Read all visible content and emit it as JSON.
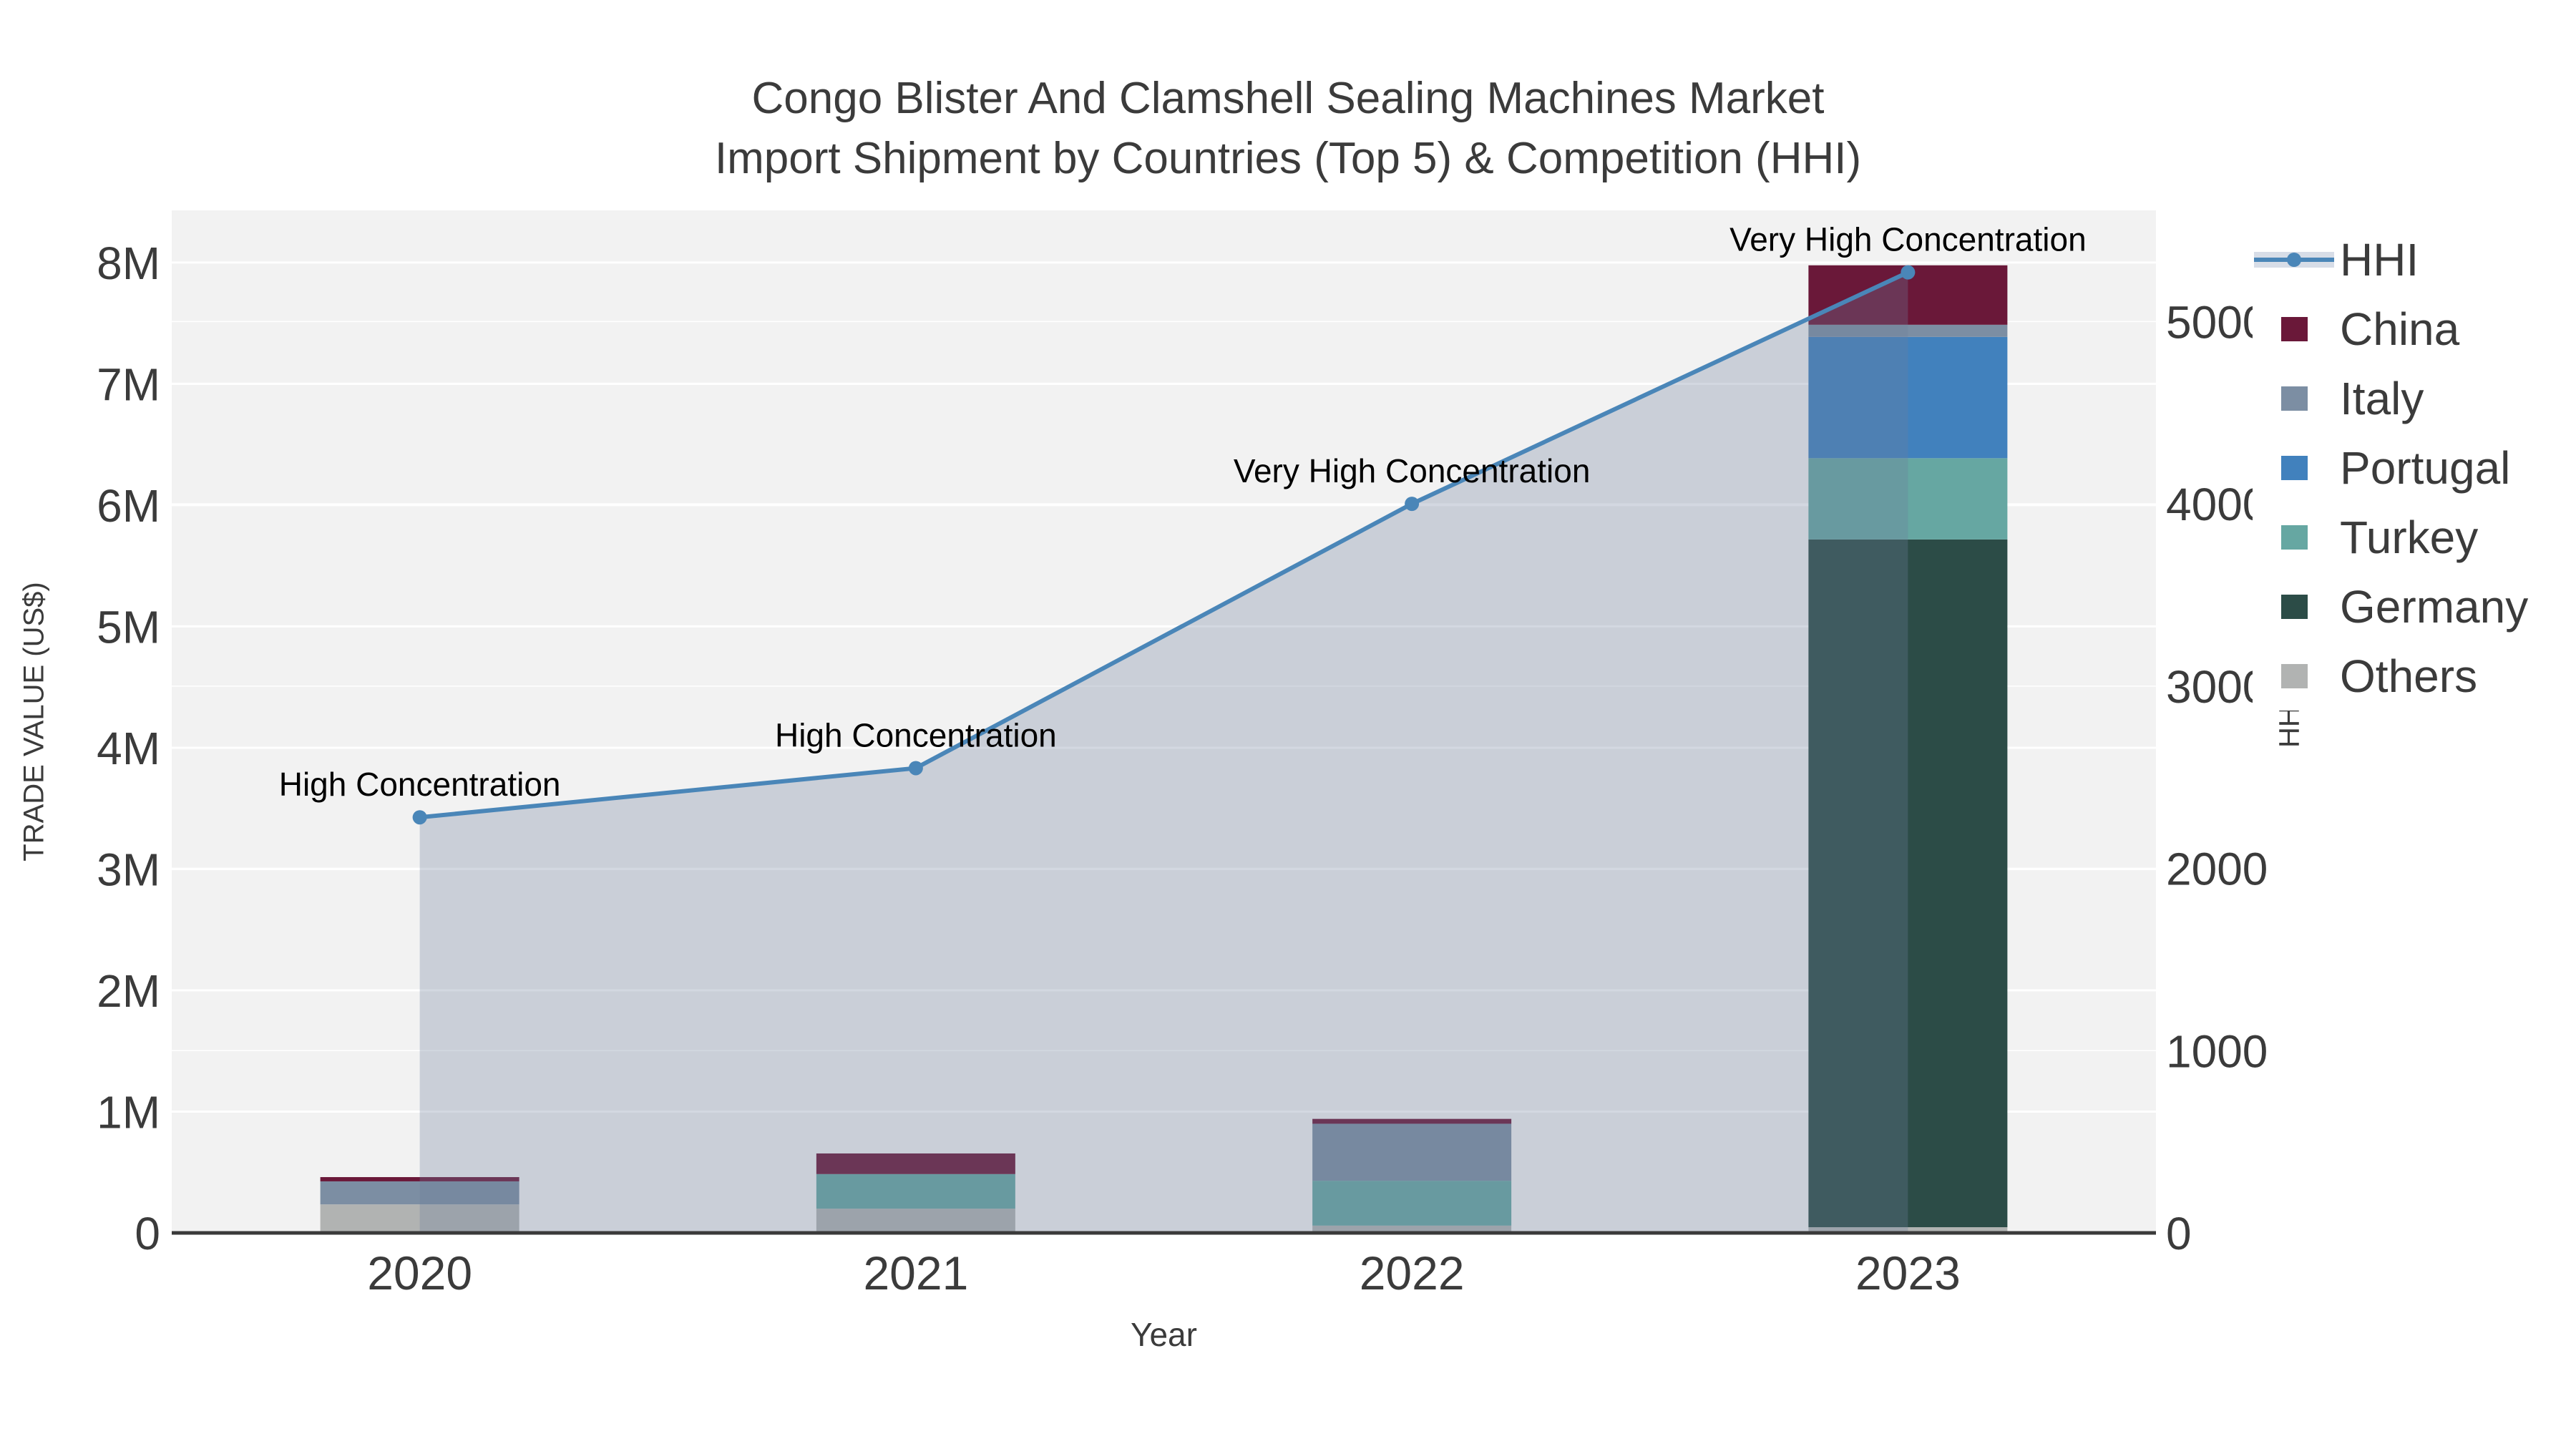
{
  "title": {
    "line1": "Congo Blister And Clamshell Sealing Machines Market",
    "line2": "Import Shipment by Countries (Top 5) & Competition (HHI)"
  },
  "chart_data": {
    "type": "bar",
    "subtype": "stacked-bars-with-line",
    "categories": [
      "2020",
      "2021",
      "2022",
      "2023"
    ],
    "series": [
      {
        "name": "China",
        "color": "#6a1839",
        "values": [
          35000,
          170000,
          40000,
          490000
        ]
      },
      {
        "name": "Italy",
        "color": "#7c8ea3",
        "values": [
          190000,
          0,
          470000,
          100000
        ]
      },
      {
        "name": "Portugal",
        "color": "#4181bd",
        "values": [
          0,
          0,
          0,
          1000000
        ]
      },
      {
        "name": "Turkey",
        "color": "#66a7a2",
        "values": [
          0,
          285000,
          370000,
          670000
        ]
      },
      {
        "name": "Germany",
        "color": "#2c4c47",
        "values": [
          0,
          0,
          0,
          5670000
        ]
      },
      {
        "name": "Others",
        "color": "#b1b3b2",
        "values": [
          235000,
          200000,
          60000,
          47000
        ]
      }
    ],
    "stack_order_bottom_to_top": [
      "Others",
      "Germany",
      "Turkey",
      "Portugal",
      "Italy",
      "China"
    ],
    "line_series": {
      "name": "HHI",
      "color": "#4a86b8",
      "fill_color": "rgba(110,126,156,0.30)",
      "values": [
        2280,
        2550,
        4000,
        5270
      ]
    },
    "annotations": [
      "High Concentration",
      "High Concentration",
      "Very High Concentration",
      "Very High Concentration"
    ],
    "left_axis": {
      "title": "TRADE VALUE (US$)",
      "tick_labels": [
        "0",
        "1M",
        "2M",
        "3M",
        "4M",
        "5M",
        "6M",
        "7M",
        "8M"
      ],
      "tick_values": [
        0,
        1000000,
        2000000,
        3000000,
        4000000,
        5000000,
        6000000,
        7000000,
        8000000
      ],
      "max": 8430000
    },
    "right_axis": {
      "title": "HHI",
      "tick_labels": [
        "0",
        "1000",
        "2000",
        "3000",
        "4000",
        "5000"
      ],
      "tick_values": [
        0,
        1000,
        2000,
        3000,
        4000,
        5000
      ],
      "max": 5610
    },
    "x_axis": {
      "title": "Year"
    },
    "plot_bg": "#f2f2f2",
    "grid_color": "#ffffff",
    "axis_line_color": "#3a3a3a",
    "tick_color": "#3b3b3b",
    "annotation_color": "#000000"
  },
  "legend": {
    "items": [
      {
        "label": "HHI",
        "type": "line",
        "color": "#4a86b8",
        "band": "#d7dde7"
      },
      {
        "label": "China",
        "type": "swatch",
        "color": "#6a1839"
      },
      {
        "label": "Italy",
        "type": "swatch",
        "color": "#7c8ea3"
      },
      {
        "label": "Portugal",
        "type": "swatch",
        "color": "#4181bd"
      },
      {
        "label": "Turkey",
        "type": "swatch",
        "color": "#66a7a2"
      },
      {
        "label": "Germany",
        "type": "swatch",
        "color": "#2c4c47"
      },
      {
        "label": "Others",
        "type": "swatch",
        "color": "#b1b3b2"
      }
    ]
  }
}
